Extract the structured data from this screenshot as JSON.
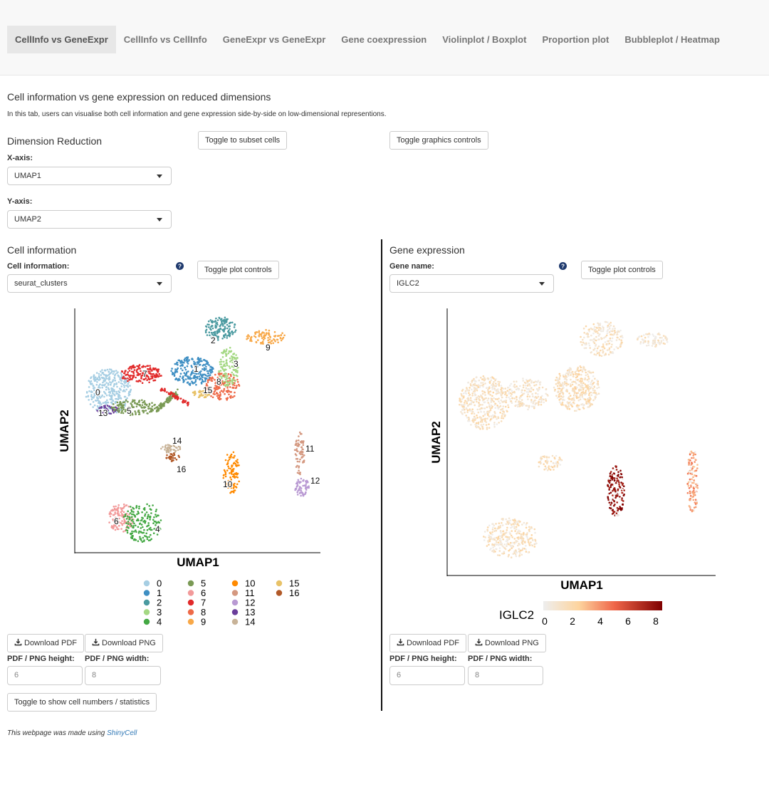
{
  "tabs": [
    {
      "label": "CellInfo vs GeneExpr",
      "active": true
    },
    {
      "label": "CellInfo vs CellInfo",
      "active": false
    },
    {
      "label": "GeneExpr vs GeneExpr",
      "active": false
    },
    {
      "label": "Gene coexpression",
      "active": false
    },
    {
      "label": "Violinplot / Boxplot",
      "active": false
    },
    {
      "label": "Proportion plot",
      "active": false
    },
    {
      "label": "Bubbleplot / Heatmap",
      "active": false
    }
  ],
  "page": {
    "title": "Cell information vs gene expression on reduced dimensions",
    "description": "In this tab, users can visualise both cell information and gene expression side-by-side on low-dimensional representions."
  },
  "dimred": {
    "heading": "Dimension Reduction",
    "x_label": "X-axis:",
    "x_value": "UMAP1",
    "y_label": "Y-axis:",
    "y_value": "UMAP2",
    "subset_button": "Toggle to subset cells",
    "graphics_button": "Toggle graphics controls"
  },
  "cellinfo": {
    "heading": "Cell information",
    "select_label": "Cell information:",
    "select_value": "seurat_clusters",
    "controls_button": "Toggle plot controls",
    "download_pdf": "Download PDF",
    "download_png": "Download PNG",
    "height_label": "PDF / PNG height:",
    "width_label": "PDF / PNG width:",
    "height_value": "6",
    "width_value": "8",
    "stats_button": "Toggle to show cell numbers / statistics"
  },
  "geneexpr": {
    "heading": "Gene expression",
    "select_label": "Gene name:",
    "select_value": "IGLC2",
    "controls_button": "Toggle plot controls",
    "download_pdf": "Download PDF",
    "download_png": "Download PNG",
    "height_label": "PDF / PNG height:",
    "width_label": "PDF / PNG width:",
    "height_value": "6",
    "width_value": "8"
  },
  "plot_left": {
    "xlabel": "UMAP1",
    "ylabel": "UMAP2",
    "legend": [
      {
        "label": "0",
        "color": "#a6cee3"
      },
      {
        "label": "1",
        "color": "#3f8fc3"
      },
      {
        "label": "2",
        "color": "#4a9aa0"
      },
      {
        "label": "3",
        "color": "#a4d883"
      },
      {
        "label": "4",
        "color": "#43a843"
      },
      {
        "label": "5",
        "color": "#7a9a55"
      },
      {
        "label": "6",
        "color": "#f29a9a"
      },
      {
        "label": "7",
        "color": "#e12a2a"
      },
      {
        "label": "8",
        "color": "#ee6a48"
      },
      {
        "label": "9",
        "color": "#f8a848"
      },
      {
        "label": "10",
        "color": "#ff8a00"
      },
      {
        "label": "11",
        "color": "#d49880"
      },
      {
        "label": "12",
        "color": "#b99ad3"
      },
      {
        "label": "13",
        "color": "#6a3d9a"
      },
      {
        "label": "14",
        "color": "#c8b398"
      },
      {
        "label": "15",
        "color": "#e8c268"
      },
      {
        "label": "16",
        "color": "#b15928"
      }
    ],
    "cluster_labels": [
      "0",
      "1",
      "2",
      "3",
      "4",
      "5",
      "6",
      "7",
      "8",
      "9",
      "10",
      "11",
      "12",
      "13",
      "14",
      "15",
      "16"
    ]
  },
  "plot_right": {
    "xlabel": "UMAP1",
    "ylabel": "UMAP2",
    "colorbar_title": "IGLC2",
    "colorbar_ticks": [
      "0",
      "2",
      "4",
      "6",
      "8"
    ]
  },
  "footer": {
    "text": "This webpage was made using",
    "link": "ShinyCell"
  }
}
